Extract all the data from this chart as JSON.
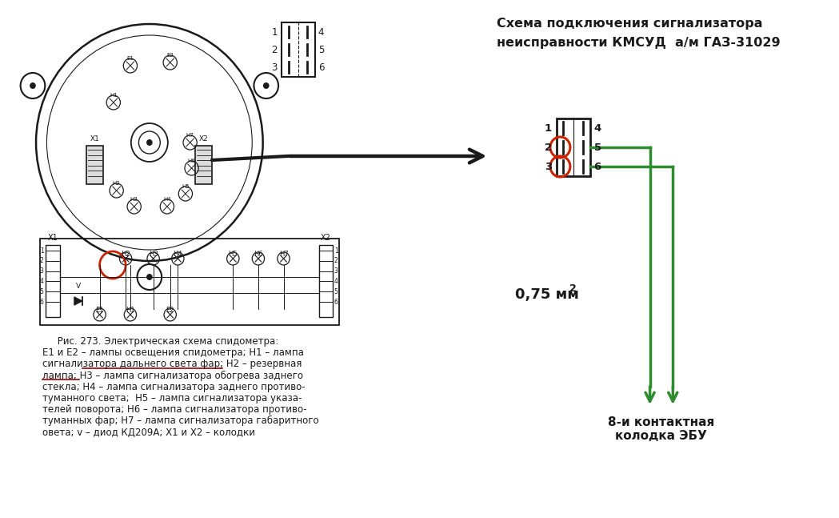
{
  "bg_color": "#ffffff",
  "title_line1": "Схема подключения сигнализатора",
  "title_line2": "неисправности КМСУД  а/м ГАЗ-31029",
  "wire_color": "#2e8b2e",
  "red_color": "#cc2200",
  "black_color": "#1a1a1a",
  "dark_red": "#990000",
  "caption_lines": [
    "     Рис. 273. Электрическая схема спидометра:",
    "Е1 и Е2 – лампы освещения спидометра; Н1 – лампа",
    "сигнализатора дальнего света фар; Н2 – резервная",
    "лампа; Н3 – лампа сигнализатора обогрева заднего",
    "стекла; Н4 – лампа сигнализатора заднего противо-",
    "туманного света;  Н5 – лампа сигнализатора указа-",
    "телей поворота; Н6 – лампа сигнализатора противо-",
    "туманных фар; Н7 – лампа сигнализатора габаритного",
    "овета; v – диод КД209А; Х1 и Х2 – колодки"
  ],
  "wire_label": "0,75 мм",
  "wire_label_sup": "2",
  "ecu_label_line1": "8-и контактная",
  "ecu_label_line2": "колодка ЭБУ"
}
